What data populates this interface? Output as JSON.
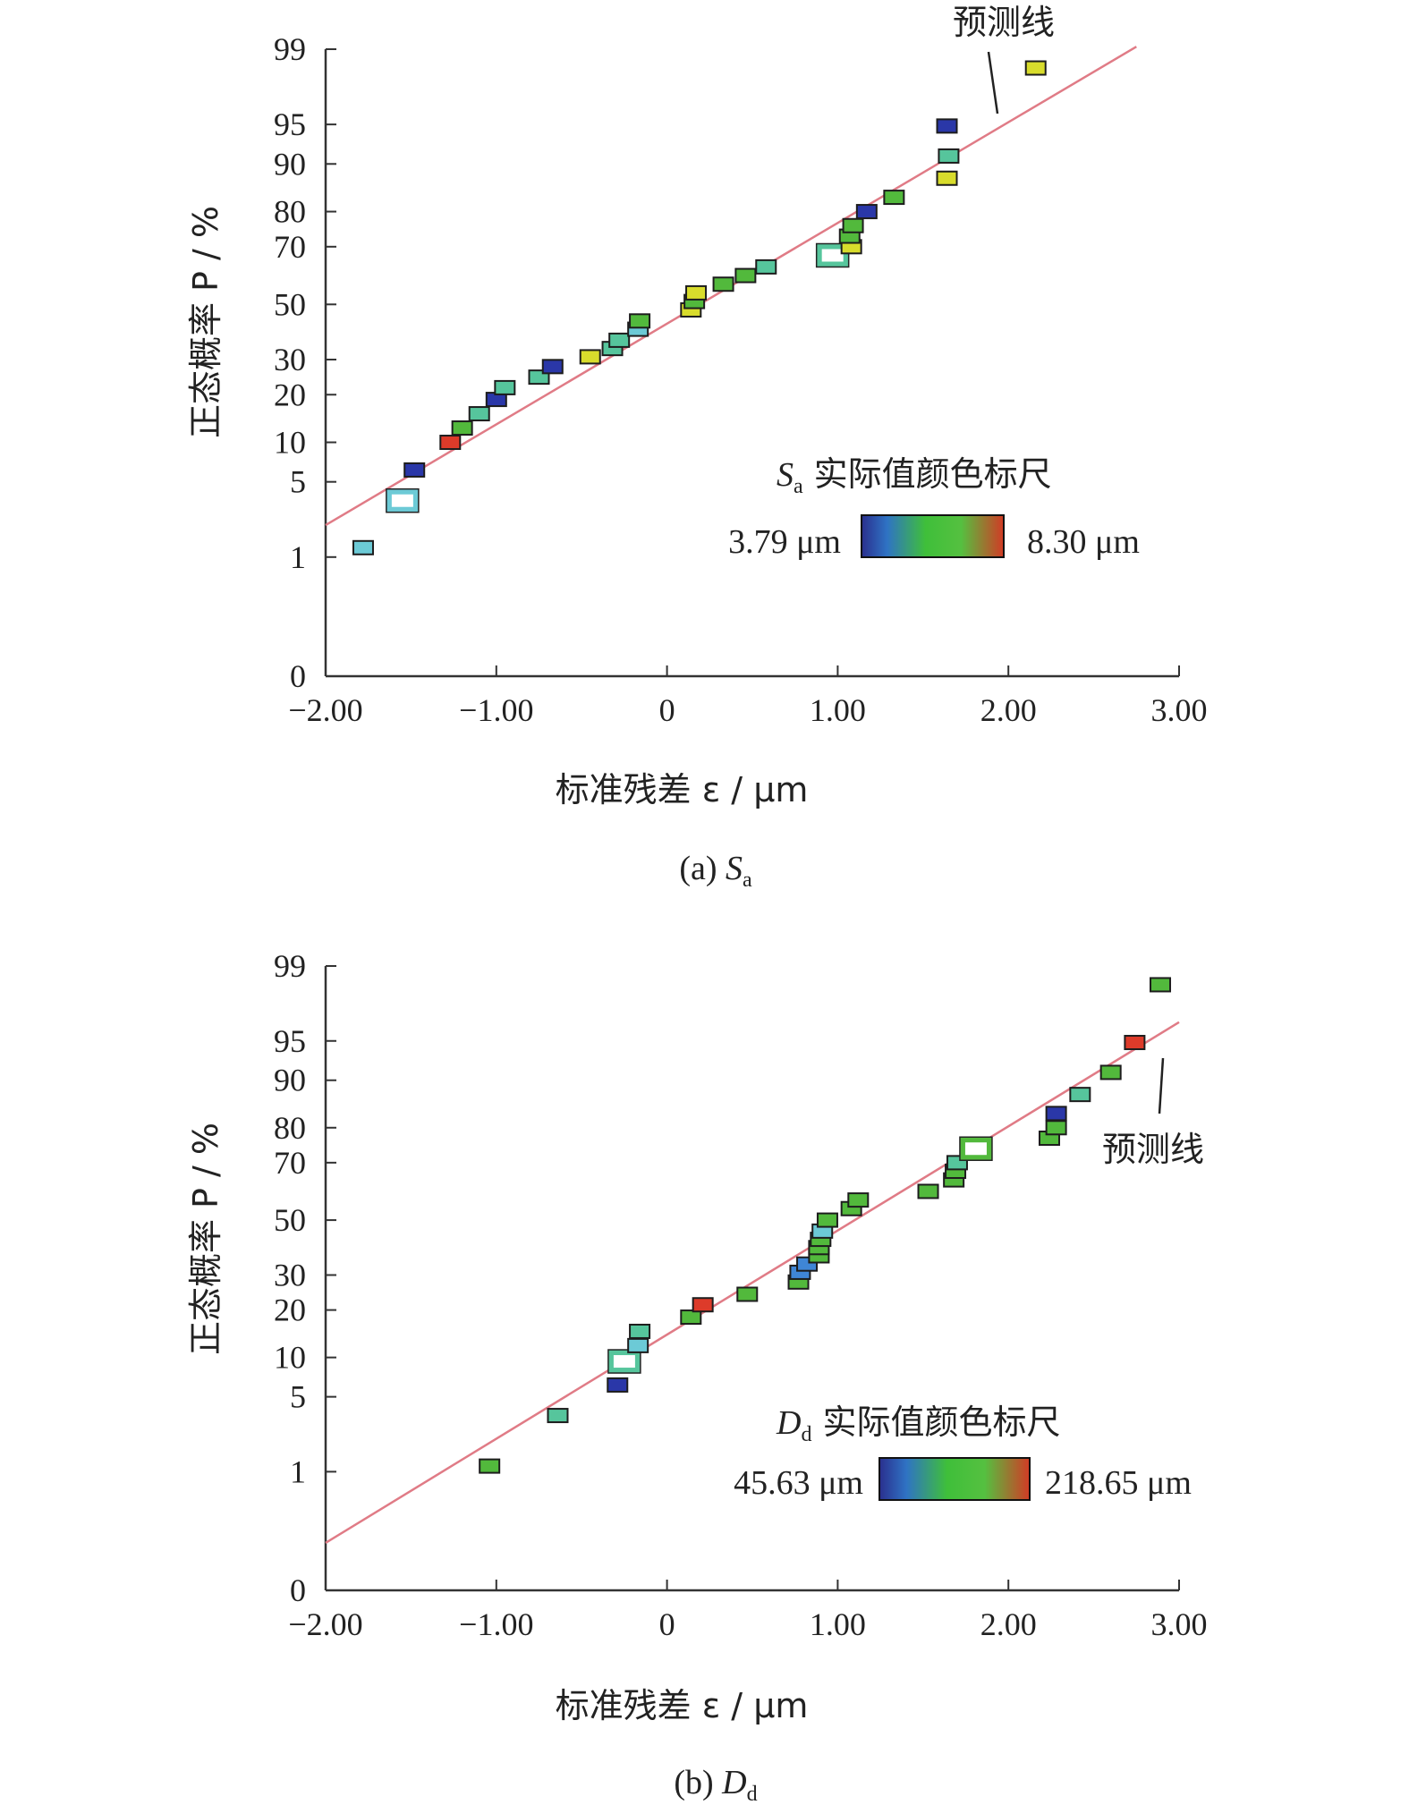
{
  "colors": {
    "fit_line": "#e07b86",
    "axis": "#333333",
    "colorbar": [
      "#2a2f8e",
      "#2f73c4",
      "#3fbf3a",
      "#55c040",
      "#d23a25"
    ]
  },
  "chart_data": [
    {
      "type": "scatter",
      "panel_caption_prefix": "(a) ",
      "caption_symbol": "S",
      "caption_subscript": "a",
      "xlabel": "标准残差 ε / μm",
      "ylabel": "正态概率 P / %",
      "xlim": [
        -2.0,
        3.0
      ],
      "x_ticks": [
        "−2.00",
        "−1.00",
        "0",
        "1.00",
        "2.00",
        "3.00"
      ],
      "y_ticks": [
        "0",
        "1",
        "5",
        "10",
        "20",
        "30",
        "50",
        "70",
        "80",
        "90",
        "95",
        "99"
      ],
      "y_scale": "normal-probability",
      "fit_line": {
        "label": "预测线",
        "from": [
          -2.0,
          2.7
        ],
        "to": [
          2.75,
          99.2
        ]
      },
      "legend": {
        "symbol": "S",
        "subscript": "a",
        "title": "实际值颜色标尺",
        "min_label": "3.79 μm",
        "max_label": "8.30 μm",
        "position": "lower-right"
      },
      "points": [
        {
          "x": -1.78,
          "y": 1.5,
          "c": "cyan",
          "hollow": false
        },
        {
          "x": -1.55,
          "y": 4.0,
          "c": "cyan",
          "hollow": true
        },
        {
          "x": -1.48,
          "y": 6.5,
          "c": "darkblue",
          "hollow": false
        },
        {
          "x": -1.27,
          "y": 10.0,
          "c": "red",
          "hollow": false
        },
        {
          "x": -1.2,
          "y": 13.0,
          "c": "green",
          "hollow": false
        },
        {
          "x": -1.1,
          "y": 16.0,
          "c": "teal",
          "hollow": false
        },
        {
          "x": -1.0,
          "y": 19.0,
          "c": "darkblue",
          "hollow": false
        },
        {
          "x": -0.95,
          "y": 22.0,
          "c": "teal",
          "hollow": false
        },
        {
          "x": -0.75,
          "y": 25.0,
          "c": "teal",
          "hollow": false
        },
        {
          "x": -0.67,
          "y": 28.0,
          "c": "darkblue",
          "hollow": false
        },
        {
          "x": -0.45,
          "y": 31.0,
          "c": "yellow",
          "hollow": false
        },
        {
          "x": -0.32,
          "y": 34.0,
          "c": "teal",
          "hollow": false
        },
        {
          "x": -0.28,
          "y": 37.0,
          "c": "teal",
          "hollow": false
        },
        {
          "x": -0.17,
          "y": 41.0,
          "c": "cyan",
          "hollow": false
        },
        {
          "x": -0.16,
          "y": 44.0,
          "c": "green",
          "hollow": false
        },
        {
          "x": 0.14,
          "y": 48.0,
          "c": "yellow",
          "hollow": false
        },
        {
          "x": 0.16,
          "y": 51.0,
          "c": "green",
          "hollow": false
        },
        {
          "x": 0.17,
          "y": 54.0,
          "c": "yellow",
          "hollow": false
        },
        {
          "x": 0.33,
          "y": 57.0,
          "c": "green",
          "hollow": false
        },
        {
          "x": 0.46,
          "y": 60.0,
          "c": "green",
          "hollow": false
        },
        {
          "x": 0.58,
          "y": 63.0,
          "c": "teal",
          "hollow": false
        },
        {
          "x": 0.97,
          "y": 67.0,
          "c": "teal",
          "hollow": true
        },
        {
          "x": 1.08,
          "y": 70.0,
          "c": "yellow",
          "hollow": false
        },
        {
          "x": 1.07,
          "y": 73.0,
          "c": "green",
          "hollow": false
        },
        {
          "x": 1.09,
          "y": 76.0,
          "c": "green",
          "hollow": false
        },
        {
          "x": 1.17,
          "y": 80.0,
          "c": "darkblue",
          "hollow": false
        },
        {
          "x": 1.33,
          "y": 83.0,
          "c": "green",
          "hollow": false
        },
        {
          "x": 1.64,
          "y": 87.0,
          "c": "yellow",
          "hollow": false
        },
        {
          "x": 1.65,
          "y": 91.0,
          "c": "teal",
          "hollow": false
        },
        {
          "x": 1.64,
          "y": 94.8,
          "c": "darkblue",
          "hollow": false
        },
        {
          "x": 2.16,
          "y": 98.0,
          "c": "yellow",
          "hollow": false
        }
      ]
    },
    {
      "type": "scatter",
      "panel_caption_prefix": "(b) ",
      "caption_symbol": "D",
      "caption_subscript": "d",
      "xlabel": "标准残差 ε / μm",
      "ylabel": "正态概率 P / %",
      "xlim": [
        -2.0,
        3.0
      ],
      "x_ticks": [
        "−2.00",
        "−1.00",
        "0",
        "1.00",
        "2.00",
        "3.00"
      ],
      "y_ticks": [
        "0",
        "1",
        "5",
        "10",
        "20",
        "30",
        "50",
        "70",
        "80",
        "90",
        "95",
        "99"
      ],
      "y_scale": "normal-probability",
      "fit_line": {
        "label": "预测线",
        "from": [
          -2.0,
          0.4
        ],
        "to": [
          3.0,
          96.0
        ]
      },
      "legend": {
        "symbol": "D",
        "subscript": "d",
        "title": "实际值颜色标尺",
        "min_label": "45.63 μm",
        "max_label": "218.65 μm",
        "position": "lower-right"
      },
      "points": [
        {
          "x": -1.04,
          "y": 1.3,
          "c": "green",
          "hollow": false
        },
        {
          "x": -0.64,
          "y": 4.0,
          "c": "teal",
          "hollow": false
        },
        {
          "x": -0.29,
          "y": 6.5,
          "c": "darkblue",
          "hollow": false
        },
        {
          "x": -0.25,
          "y": 9.5,
          "c": "teal",
          "hollow": true
        },
        {
          "x": -0.17,
          "y": 12.5,
          "c": "cyan",
          "hollow": false
        },
        {
          "x": -0.16,
          "y": 15.5,
          "c": "teal",
          "hollow": false
        },
        {
          "x": 0.14,
          "y": 18.5,
          "c": "green",
          "hollow": false
        },
        {
          "x": 0.21,
          "y": 21.5,
          "c": "red",
          "hollow": false
        },
        {
          "x": 0.47,
          "y": 24.5,
          "c": "green",
          "hollow": false
        },
        {
          "x": 0.77,
          "y": 28.0,
          "c": "green",
          "hollow": false
        },
        {
          "x": 0.78,
          "y": 31.0,
          "c": "blue",
          "hollow": false
        },
        {
          "x": 0.82,
          "y": 34.0,
          "c": "blue",
          "hollow": false
        },
        {
          "x": 0.89,
          "y": 37.0,
          "c": "green",
          "hollow": false
        },
        {
          "x": 0.89,
          "y": 40.0,
          "c": "green",
          "hollow": false
        },
        {
          "x": 0.9,
          "y": 43.0,
          "c": "green",
          "hollow": false
        },
        {
          "x": 0.91,
          "y": 46.0,
          "c": "cyan",
          "hollow": false
        },
        {
          "x": 0.94,
          "y": 50.0,
          "c": "green",
          "hollow": false
        },
        {
          "x": 1.08,
          "y": 54.0,
          "c": "green",
          "hollow": false
        },
        {
          "x": 1.12,
          "y": 57.0,
          "c": "green",
          "hollow": false
        },
        {
          "x": 1.53,
          "y": 60.0,
          "c": "green",
          "hollow": false
        },
        {
          "x": 1.68,
          "y": 64.0,
          "c": "green",
          "hollow": false
        },
        {
          "x": 1.69,
          "y": 67.0,
          "c": "green",
          "hollow": false
        },
        {
          "x": 1.7,
          "y": 70.0,
          "c": "teal",
          "hollow": false
        },
        {
          "x": 1.81,
          "y": 74.0,
          "c": "green",
          "hollow": true
        },
        {
          "x": 2.24,
          "y": 77.0,
          "c": "green",
          "hollow": false
        },
        {
          "x": 2.28,
          "y": 80.0,
          "c": "green",
          "hollow": false
        },
        {
          "x": 2.28,
          "y": 83.0,
          "c": "darkblue",
          "hollow": false
        },
        {
          "x": 2.42,
          "y": 87.0,
          "c": "teal",
          "hollow": false
        },
        {
          "x": 2.6,
          "y": 91.0,
          "c": "green",
          "hollow": false
        },
        {
          "x": 2.74,
          "y": 94.8,
          "c": "red",
          "hollow": false
        },
        {
          "x": 2.89,
          "y": 98.0,
          "c": "green",
          "hollow": false
        }
      ]
    }
  ]
}
